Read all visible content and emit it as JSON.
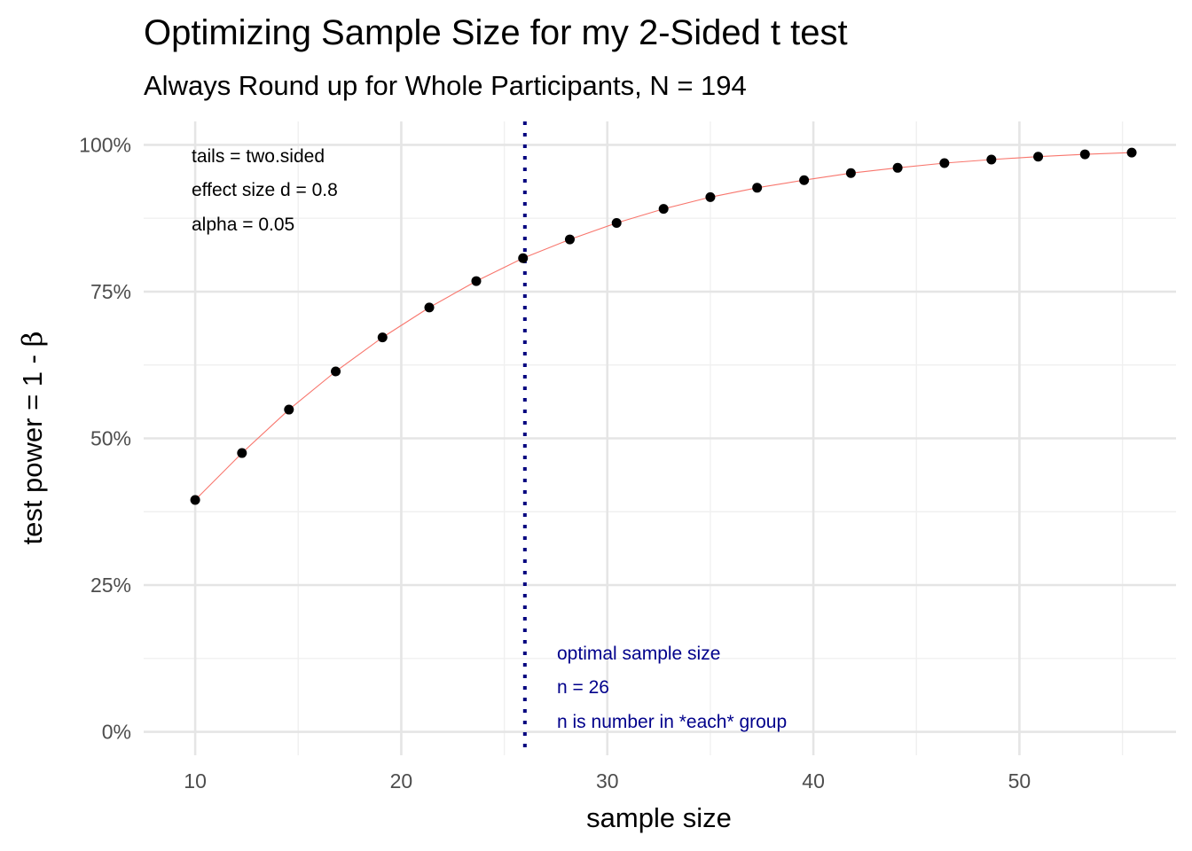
{
  "title": "Optimizing Sample Size for my 2-Sided t test",
  "subtitle": "Always Round up for Whole Participants, N = 194",
  "colors": {
    "curve": "#f8766d",
    "points": "#000000",
    "vline": "#00007f",
    "annotation_blue": "#00008b",
    "grid_major": "#e5e5e5",
    "grid_minor": "#f0f0f0"
  },
  "chart_data": {
    "type": "scatter",
    "xlabel": "sample size",
    "ylabel_prefix": "test power = 1 - ",
    "ylabel_symbol": "β",
    "xlim": [
      7.5,
      57.6
    ],
    "ylim": [
      -0.04,
      1.04
    ],
    "x_ticks": [
      {
        "value": 10,
        "label": "10"
      },
      {
        "value": 20,
        "label": "20"
      },
      {
        "value": 30,
        "label": "30"
      },
      {
        "value": 40,
        "label": "40"
      },
      {
        "value": 50,
        "label": "50"
      }
    ],
    "y_ticks": [
      {
        "value": 0,
        "label": "0%"
      },
      {
        "value": 0.25,
        "label": "25%"
      },
      {
        "value": 0.5,
        "label": "50%"
      },
      {
        "value": 0.75,
        "label": "75%"
      },
      {
        "value": 1,
        "label": "100%"
      }
    ],
    "grid": true,
    "legend": "none",
    "line_connects_points": true,
    "x": [
      10,
      12.27,
      14.55,
      16.82,
      19.09,
      21.36,
      23.64,
      25.91,
      28.18,
      30.45,
      32.73,
      35.0,
      37.27,
      39.55,
      41.82,
      44.09,
      46.36,
      48.64,
      50.91,
      53.18,
      55.45
    ],
    "y": [
      0.395,
      0.475,
      0.549,
      0.614,
      0.672,
      0.723,
      0.768,
      0.807,
      0.839,
      0.867,
      0.891,
      0.911,
      0.927,
      0.94,
      0.952,
      0.961,
      0.969,
      0.975,
      0.98,
      0.984,
      0.987
    ],
    "vline": {
      "x": 26,
      "style": "dotted"
    },
    "annotations_topleft": [
      "tails = two.sided",
      "effect size d = 0.8",
      "alpha = 0.05"
    ],
    "annotations_optimal": [
      "optimal sample size",
      "n = 26",
      "n is number in *each* group"
    ]
  }
}
